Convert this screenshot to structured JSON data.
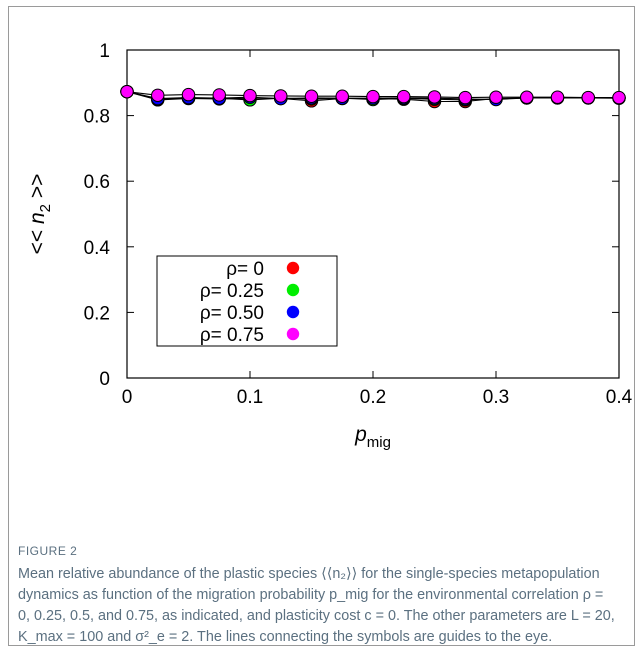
{
  "chart_data": {
    "type": "scatter",
    "title": "",
    "xlabel": "p_mig",
    "xlabel_main": "p",
    "xlabel_sub": "mig",
    "ylabel": "<< n_2 >>",
    "ylabel_pre": "<< n",
    "ylabel_sub": "2",
    "ylabel_post": " >>",
    "xlim": [
      0,
      0.4
    ],
    "ylim": [
      0,
      1
    ],
    "x_ticks": [
      "0",
      "0.1",
      "0.2",
      "0.3",
      "0.4"
    ],
    "x_tick_values": [
      0,
      0.1,
      0.2,
      0.3,
      0.4
    ],
    "y_ticks": [
      "0",
      "0.2",
      "0.4",
      "0.6",
      "0.8",
      "1"
    ],
    "y_tick_values": [
      0,
      0.2,
      0.4,
      0.6,
      0.8,
      1
    ],
    "legend_position": "lower-left",
    "connecting_lines": true,
    "x": [
      0,
      0.025,
      0.05,
      0.075,
      0.1,
      0.125,
      0.15,
      0.175,
      0.2,
      0.225,
      0.25,
      0.275,
      0.3,
      0.325,
      0.35,
      0.375,
      0.4
    ],
    "series": [
      {
        "name": "ρ= 0",
        "color": "#ff0000",
        "values": [
          0.873,
          0.848,
          0.852,
          0.851,
          0.853,
          0.852,
          0.845,
          0.852,
          0.852,
          0.85,
          0.843,
          0.843,
          0.852,
          0.854,
          0.854,
          0.854,
          0.853
        ]
      },
      {
        "name": "ρ= 0.25",
        "color": "#00ee00",
        "values": [
          0.873,
          0.85,
          0.853,
          0.853,
          0.848,
          0.853,
          0.851,
          0.853,
          0.849,
          0.852,
          0.85,
          0.848,
          0.851,
          0.854,
          0.854,
          0.854,
          0.854
        ]
      },
      {
        "name": "ρ= 0.50",
        "color": "#0000ff",
        "values": [
          0.873,
          0.852,
          0.855,
          0.853,
          0.856,
          0.852,
          0.854,
          0.853,
          0.853,
          0.854,
          0.853,
          0.851,
          0.849,
          0.854,
          0.855,
          0.854,
          0.854
        ]
      },
      {
        "name": "ρ= 0.75",
        "color": "#ff00ff",
        "values": [
          0.873,
          0.862,
          0.864,
          0.863,
          0.861,
          0.86,
          0.859,
          0.859,
          0.858,
          0.858,
          0.857,
          0.855,
          0.856,
          0.856,
          0.856,
          0.855,
          0.855
        ]
      }
    ]
  },
  "caption": {
    "label": "FIGURE 2",
    "text": "Mean relative abundance of the plastic species ⟨⟨n₂⟩⟩ for the single-species metapopulation dynamics as function of the migration probability p_mig for the environmental correlation ρ = 0, 0.25, 0.5, and 0.75, as indicated, and plasticity cost c = 0. The other parameters are L = 20, K_max = 100 and σ²_e = 2. The lines connecting the symbols are guides to the eye."
  }
}
